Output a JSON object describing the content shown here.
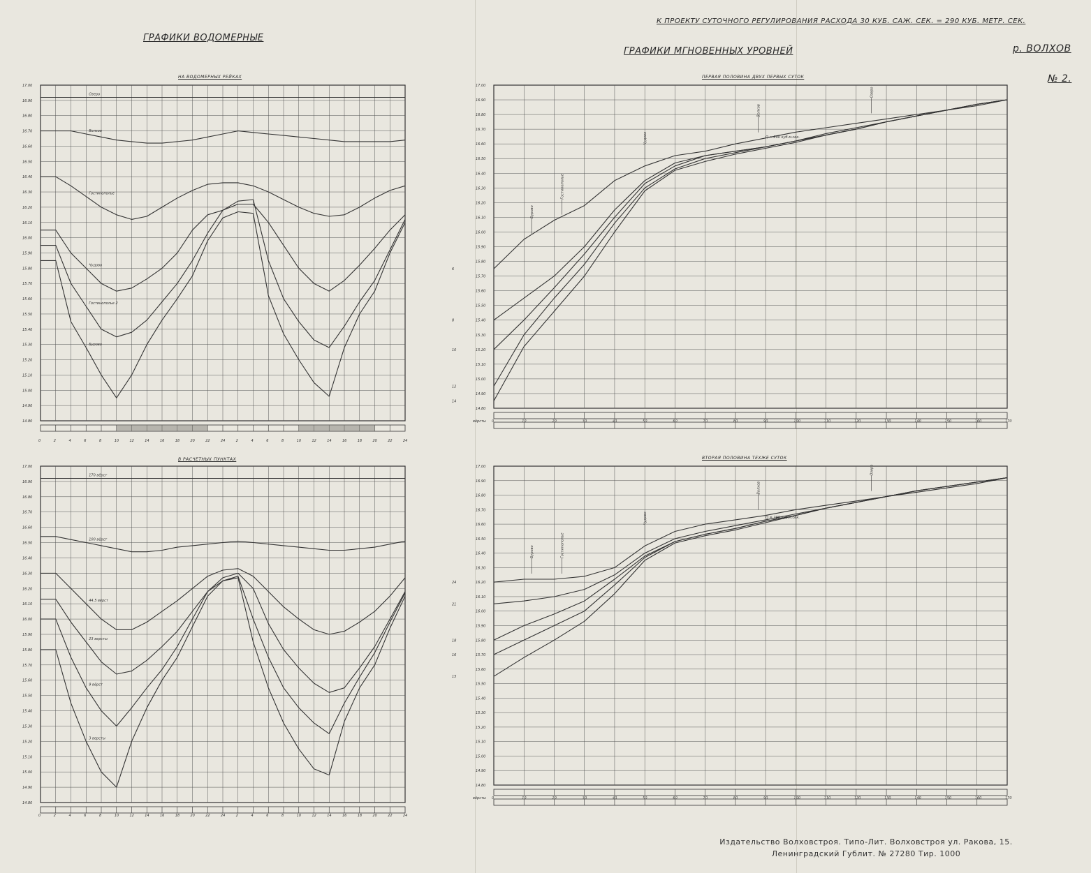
{
  "header": {
    "top_right": "К ПРОЕКТУ СУТОЧНОГО РЕГУЛИРОВАНИЯ РАСХОДА 30 КУБ. САЖ. СЕК. = 290 КУБ. МЕТР. СЕК.",
    "left_title": "ГРАФИКИ ВОДОМЕРНЫЕ",
    "right_title": "ГРАФИКИ МГНОВЕННЫХ УРОВНЕЙ",
    "river": "р. ВОЛХОВ",
    "number": "№ 2."
  },
  "footer": {
    "line1": "Издательство Волховстроя. Типо-Лит. Волховстроя ул. Ракова, 15.",
    "line2": "Ленинградский Гублит. № 27280 Тир. 1000"
  },
  "chart_data": [
    {
      "type": "line",
      "title": "НА ВОДОМЕРНЫХ РЕЙКАХ",
      "ylim": [
        14.8,
        17.0
      ],
      "y_ticks": [
        "17.00",
        "16.90",
        "16.80",
        "16.70",
        "16.60",
        "16.50",
        "16.40",
        "16.30",
        "16.20",
        "16.10",
        "16.00",
        "15.90",
        "15.80",
        "15.70",
        "15.60",
        "15.50",
        "15.40",
        "15.30",
        "15.20",
        "15.10",
        "15.00",
        "14.90",
        "14.80"
      ],
      "x": [
        0,
        2,
        4,
        6,
        8,
        10,
        12,
        14,
        16,
        18,
        20,
        22,
        24,
        26,
        28,
        30,
        32,
        34,
        36,
        38,
        40,
        42,
        44,
        46,
        48
      ],
      "x_ticks": [
        "0",
        "2",
        "4",
        "6",
        "8",
        "10",
        "12",
        "14",
        "16",
        "18",
        "20",
        "22",
        "24",
        "2",
        "4",
        "6",
        "8",
        "10",
        "12",
        "14",
        "16",
        "18",
        "20",
        "22",
        "24"
      ],
      "series": [
        {
          "name": "Озеро",
          "values": [
            16.92,
            16.92,
            16.92,
            16.92,
            16.92,
            16.92,
            16.92,
            16.92,
            16.92,
            16.92,
            16.92,
            16.92,
            16.92,
            16.92,
            16.92,
            16.92,
            16.92,
            16.92,
            16.92,
            16.92,
            16.92,
            16.92,
            16.92,
            16.92,
            16.92
          ]
        },
        {
          "name": "Волхов",
          "values": [
            16.7,
            16.7,
            16.7,
            16.68,
            16.66,
            16.64,
            16.63,
            16.62,
            16.62,
            16.63,
            16.64,
            16.66,
            16.68,
            16.7,
            16.69,
            16.68,
            16.67,
            16.66,
            16.65,
            16.64,
            16.63,
            16.63,
            16.63,
            16.63,
            16.64
          ]
        },
        {
          "name": "Гостинополье",
          "values": [
            16.4,
            16.4,
            16.34,
            16.27,
            16.2,
            16.15,
            16.12,
            16.14,
            16.2,
            16.26,
            16.31,
            16.35,
            16.36,
            16.36,
            16.34,
            16.3,
            16.25,
            16.2,
            16.16,
            16.14,
            16.15,
            16.2,
            16.26,
            16.31,
            16.34
          ]
        },
        {
          "name": "Чудово",
          "values": [
            16.05,
            16.05,
            15.9,
            15.8,
            15.7,
            15.65,
            15.67,
            15.73,
            15.8,
            15.9,
            16.05,
            16.15,
            16.18,
            16.22,
            16.22,
            16.1,
            15.95,
            15.8,
            15.7,
            15.65,
            15.72,
            15.82,
            15.93,
            16.05,
            16.15
          ]
        },
        {
          "name": "Гостинополье 2",
          "values": [
            15.95,
            15.95,
            15.7,
            15.55,
            15.4,
            15.35,
            15.38,
            15.46,
            15.58,
            15.7,
            15.85,
            16.03,
            16.18,
            16.24,
            16.25,
            15.85,
            15.6,
            15.45,
            15.33,
            15.28,
            15.42,
            15.58,
            15.72,
            15.92,
            16.12
          ]
        },
        {
          "name": "Бурово",
          "values": [
            15.85,
            15.85,
            15.45,
            15.28,
            15.1,
            14.95,
            15.1,
            15.3,
            15.46,
            15.6,
            15.75,
            15.98,
            16.13,
            16.17,
            16.16,
            15.62,
            15.37,
            15.2,
            15.05,
            14.96,
            15.28,
            15.5,
            15.65,
            15.9,
            16.1
          ]
        }
      ]
    },
    {
      "type": "line",
      "title": "В РАСЧЕТНЫХ ПУНКТАХ",
      "ylim": [
        14.8,
        17.0
      ],
      "x": [
        0,
        2,
        4,
        6,
        8,
        10,
        12,
        14,
        16,
        18,
        20,
        22,
        24,
        26,
        28,
        30,
        32,
        34,
        36,
        38,
        40,
        42,
        44,
        46,
        48
      ],
      "x_ticks": [
        "0",
        "2",
        "4",
        "6",
        "8",
        "10",
        "12",
        "14",
        "16",
        "18",
        "20",
        "22",
        "24",
        "2",
        "4",
        "6",
        "8",
        "10",
        "12",
        "14",
        "16",
        "18",
        "20",
        "22",
        "24"
      ],
      "series": [
        {
          "name": "170 вёрст",
          "values": [
            16.92,
            16.92,
            16.92,
            16.92,
            16.92,
            16.92,
            16.92,
            16.92,
            16.92,
            16.92,
            16.92,
            16.92,
            16.92,
            16.92,
            16.92,
            16.92,
            16.92,
            16.92,
            16.92,
            16.92,
            16.92,
            16.92,
            16.92,
            16.92,
            16.92
          ]
        },
        {
          "name": "100 вёрст",
          "values": [
            16.54,
            16.54,
            16.52,
            16.5,
            16.48,
            16.46,
            16.44,
            16.44,
            16.45,
            16.47,
            16.48,
            16.49,
            16.5,
            16.51,
            16.5,
            16.49,
            16.48,
            16.47,
            16.46,
            16.45,
            16.45,
            16.46,
            16.47,
            16.49,
            16.51
          ]
        },
        {
          "name": "44.5 вёрст",
          "values": [
            16.3,
            16.3,
            16.2,
            16.1,
            16.0,
            15.93,
            15.93,
            15.98,
            16.05,
            16.12,
            16.2,
            16.28,
            16.32,
            16.33,
            16.28,
            16.18,
            16.08,
            16.0,
            15.93,
            15.9,
            15.92,
            15.98,
            16.05,
            16.15,
            16.27
          ]
        },
        {
          "name": "23 версты",
          "values": [
            16.13,
            16.13,
            15.98,
            15.85,
            15.72,
            15.64,
            15.66,
            15.73,
            15.82,
            15.92,
            16.05,
            16.18,
            16.27,
            16.3,
            16.2,
            15.97,
            15.8,
            15.68,
            15.58,
            15.52,
            15.55,
            15.68,
            15.82,
            16.0,
            16.18
          ]
        },
        {
          "name": "9 вёрст",
          "values": [
            16.0,
            16.0,
            15.75,
            15.55,
            15.4,
            15.3,
            15.42,
            15.55,
            15.67,
            15.82,
            16.0,
            16.18,
            16.25,
            16.28,
            16.0,
            15.75,
            15.55,
            15.42,
            15.32,
            15.25,
            15.45,
            15.62,
            15.78,
            15.98,
            16.17
          ]
        },
        {
          "name": "3 версты",
          "values": [
            15.8,
            15.8,
            15.45,
            15.2,
            15.0,
            14.9,
            15.2,
            15.42,
            15.6,
            15.75,
            15.95,
            16.15,
            16.25,
            16.27,
            15.85,
            15.55,
            15.32,
            15.15,
            15.02,
            14.98,
            15.33,
            15.55,
            15.7,
            15.94,
            16.15
          ]
        }
      ]
    },
    {
      "type": "line",
      "title": "ПЕРВАЯ ПОЛОВИНА ДВУХ ПЕРВЫХ СУТОК",
      "ylim": [
        14.8,
        17.0
      ],
      "xlabel": "вёрсты",
      "x": [
        0,
        10,
        20,
        30,
        40,
        50,
        60,
        70,
        80,
        90,
        100,
        110,
        120,
        130,
        140,
        150,
        160,
        170
      ],
      "x_ticks": [
        "0",
        "10",
        "20",
        "30",
        "40",
        "50",
        "60",
        "70",
        "80",
        "90",
        "100",
        "110",
        "120",
        "130",
        "140",
        "150",
        "160",
        "170"
      ],
      "point_labels": [
        "Бурово",
        "Гостинополье",
        "Чудово",
        "Волхов",
        "Озеро"
      ],
      "annotation": "Q = 290 куб.м.сек.",
      "series": [
        {
          "name": "6",
          "values": [
            15.75,
            15.95,
            16.08,
            16.18,
            16.35,
            16.45,
            16.52,
            16.55,
            16.6,
            16.64,
            16.68,
            16.71,
            16.74,
            16.77,
            16.8,
            16.83,
            16.86,
            16.9
          ]
        },
        {
          "name": "8",
          "values": [
            15.4,
            15.55,
            15.7,
            15.9,
            16.15,
            16.35,
            16.47,
            16.52,
            16.55,
            16.58,
            16.62,
            16.67,
            16.71,
            16.75,
            16.79,
            16.83,
            16.87,
            16.9
          ]
        },
        {
          "name": "10",
          "values": [
            15.2,
            15.4,
            15.62,
            15.85,
            16.1,
            16.33,
            16.45,
            16.52,
            16.55,
            16.58,
            16.62,
            16.66,
            16.7,
            16.75,
            16.79,
            16.83,
            16.87,
            16.9
          ]
        },
        {
          "name": "12",
          "values": [
            14.95,
            15.3,
            15.55,
            15.78,
            16.06,
            16.3,
            16.43,
            16.5,
            16.54,
            16.58,
            16.62,
            16.66,
            16.7,
            16.75,
            16.79,
            16.83,
            16.87,
            16.9
          ]
        },
        {
          "name": "14",
          "values": [
            14.85,
            15.22,
            15.46,
            15.7,
            16.0,
            16.28,
            16.42,
            16.48,
            16.53,
            16.57,
            16.61,
            16.66,
            16.7,
            16.75,
            16.79,
            16.83,
            16.87,
            16.9
          ]
        }
      ]
    },
    {
      "type": "line",
      "title": "ВТОРАЯ ПОЛОВИНА ТЕХЖЕ СУТОК",
      "ylim": [
        14.8,
        17.0
      ],
      "xlabel": "вёрсты",
      "x": [
        0,
        10,
        20,
        30,
        40,
        50,
        60,
        70,
        80,
        90,
        100,
        110,
        120,
        130,
        140,
        150,
        160,
        170
      ],
      "x_ticks": [
        "0",
        "10",
        "20",
        "30",
        "40",
        "50",
        "60",
        "70",
        "80",
        "90",
        "100",
        "110",
        "120",
        "130",
        "140",
        "150",
        "160",
        "170"
      ],
      "point_labels": [
        "Бурово",
        "Гостинополье",
        "Чудово",
        "Волхов",
        "Озеро"
      ],
      "annotation": "Q = 290 куб.м.сек.",
      "series": [
        {
          "name": "24",
          "values": [
            16.2,
            16.22,
            16.22,
            16.24,
            16.3,
            16.45,
            16.55,
            16.6,
            16.63,
            16.66,
            16.7,
            16.73,
            16.76,
            16.79,
            16.82,
            16.85,
            16.88,
            16.92
          ]
        },
        {
          "name": "21",
          "values": [
            16.05,
            16.07,
            16.1,
            16.15,
            16.25,
            16.4,
            16.5,
            16.55,
            16.59,
            16.63,
            16.67,
            16.71,
            16.75,
            16.79,
            16.83,
            16.86,
            16.89,
            16.92
          ]
        },
        {
          "name": "18",
          "values": [
            15.8,
            15.9,
            15.98,
            16.07,
            16.22,
            16.38,
            16.48,
            16.53,
            16.57,
            16.62,
            16.66,
            16.71,
            16.75,
            16.79,
            16.83,
            16.86,
            16.89,
            16.92
          ]
        },
        {
          "name": "16",
          "values": [
            15.7,
            15.8,
            15.9,
            16.0,
            16.18,
            16.37,
            16.48,
            16.53,
            16.57,
            16.62,
            16.66,
            16.71,
            16.75,
            16.79,
            16.83,
            16.86,
            16.89,
            16.92
          ]
        },
        {
          "name": "15",
          "values": [
            15.55,
            15.68,
            15.8,
            15.93,
            16.12,
            16.35,
            16.47,
            16.52,
            16.56,
            16.61,
            16.66,
            16.71,
            16.75,
            16.79,
            16.83,
            16.86,
            16.89,
            16.92
          ]
        }
      ]
    }
  ]
}
